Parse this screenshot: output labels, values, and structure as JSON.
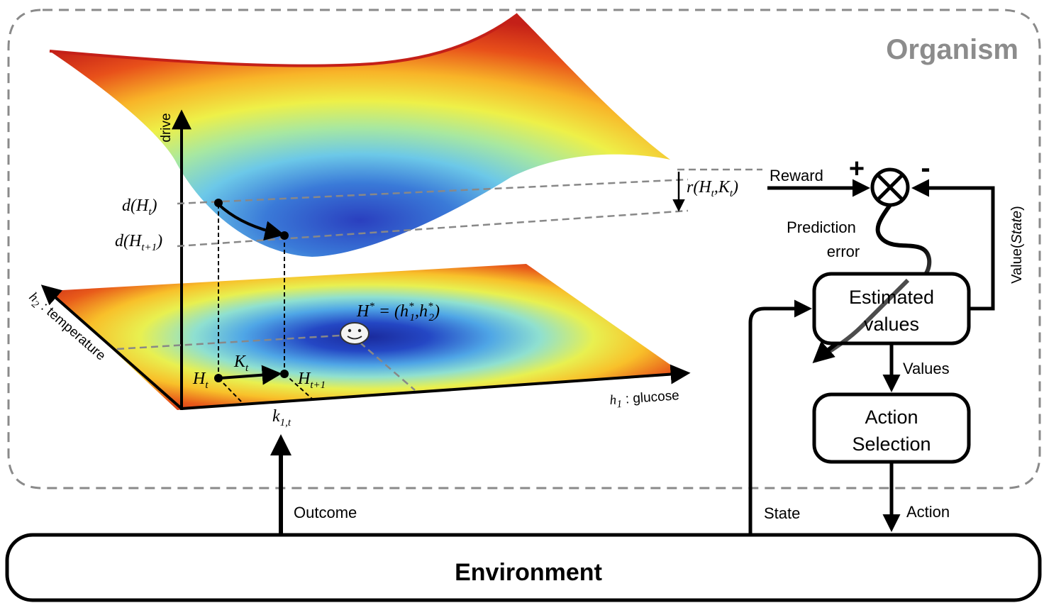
{
  "organism_label": "Organism",
  "environment_label": "Environment",
  "axes": {
    "drive": "drive",
    "h2_sym": "h",
    "h2_sub": "2",
    "h2_text": " : temperature",
    "h1_sym": "h",
    "h1_sub": "1",
    "h1_text": " : glucose"
  },
  "math": {
    "d_Ht_main": "d(H",
    "d_Ht_sub": "t",
    "d_Ht_close": ")",
    "d_Ht1_main": "d(H",
    "d_Ht1_sub": "t+1",
    "d_Ht1_close": ")",
    "reward_fn_main": "r(H",
    "reward_fn_sub1": "t",
    "reward_fn_mid": ",K",
    "reward_fn_sub2": "t",
    "reward_fn_close": ")",
    "hstar_main": "H",
    "hstar_sup": "*",
    "hstar_eq": " = (h",
    "hstar_h1sup": "*",
    "hstar_h1sub": "1",
    "hstar_comma": ",h",
    "hstar_h2sup": "*",
    "hstar_h2sub": "2",
    "hstar_close": ")",
    "Ht_main": "H",
    "Ht_sub": "t",
    "Kt_main": "K",
    "Kt_sub": "t",
    "Ht1_main": "H",
    "Ht1_sub": "t+1",
    "k1t_main": "k",
    "k1t_sub": "1,t"
  },
  "loop": {
    "reward": "Reward",
    "plus": "+",
    "minus": "-",
    "prediction": "Prediction",
    "error": "error",
    "value_state_prefix": "Value(",
    "value_state_italic": "State",
    "value_state_suffix": ")",
    "estimated_line1": "Estimated",
    "estimated_line2": "values",
    "values": "Values",
    "action_selection_line1": "Action",
    "action_selection_line2": "Selection",
    "action": "Action",
    "state": "State",
    "outcome": "Outcome"
  }
}
